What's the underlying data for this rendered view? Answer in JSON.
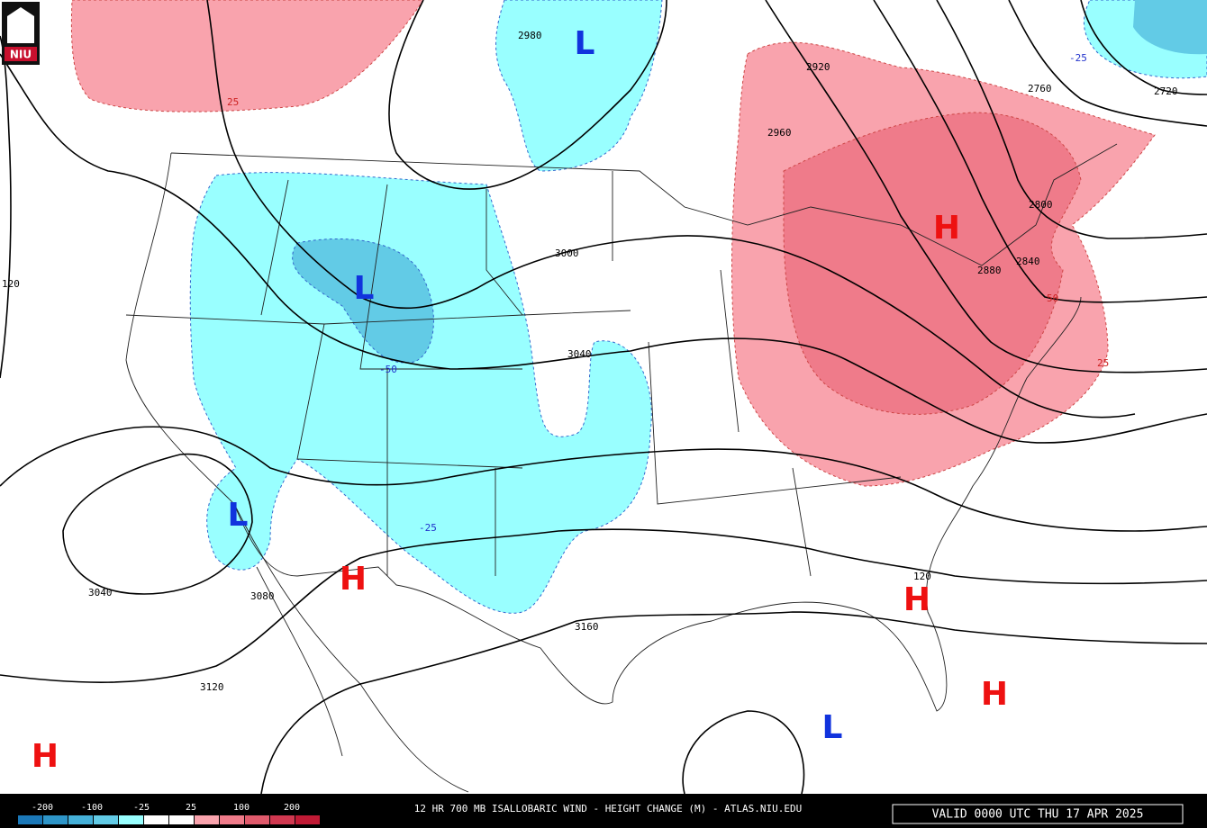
{
  "logo": "NIU",
  "title": "12 HR 700 MB ISALLOBARIC WIND - HEIGHT CHANGE (M) - ATLAS.NIU.EDU",
  "valid": "VALID 0000 UTC THU 17 APR 2025",
  "legend": {
    "labels": [
      -200,
      -100,
      -25,
      25,
      100,
      200
    ],
    "colors": [
      "#1b78b8",
      "#2e95c8",
      "#45b0d8",
      "#62cbe6",
      "#99ffff",
      "#ffffff",
      "#ffffff",
      "#f9a3ad",
      "#ef7b8a",
      "#e05a6c",
      "#d03850",
      "#c01a35"
    ]
  },
  "contour_labels": [
    "2980",
    "3000",
    "3040",
    "3040",
    "3080",
    "3120",
    "3160",
    "2920",
    "2960",
    "2760",
    "2720",
    "2800",
    "2840",
    "2880",
    "120",
    "120"
  ],
  "change_labels": [
    "25",
    "-25",
    "-50",
    "50",
    "25",
    "-25"
  ],
  "centers": [
    "L",
    "L",
    "L",
    "L",
    "H",
    "H",
    "H",
    "H",
    "H"
  ]
}
